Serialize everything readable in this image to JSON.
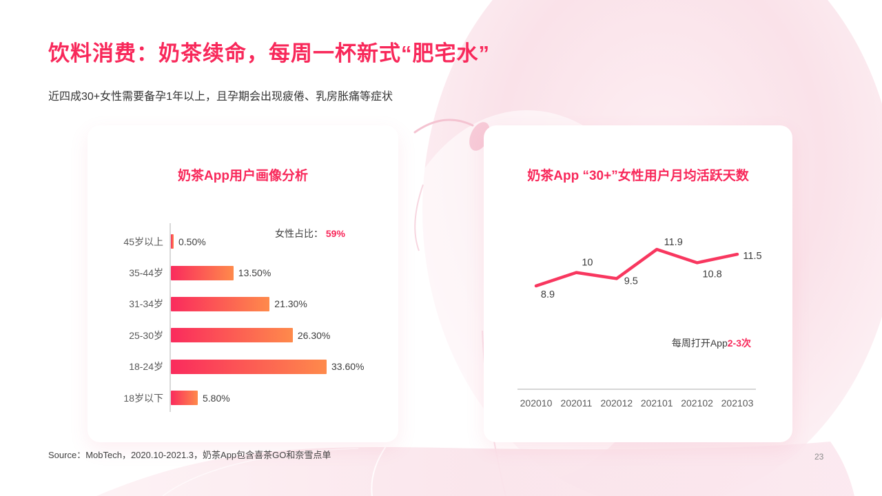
{
  "slide": {
    "title": "饮料消费：奶茶续命，每周一杯新式“肥宅水”",
    "subtitle": "近四成30+女性需要备孕1年以上，且孕期会出现疲倦、乳房胀痛等症状",
    "source": "Source：MobTech，2020.10-2021.3，奶茶App包含喜茶GO和奈雪点单",
    "page_number": "23"
  },
  "colors": {
    "accent": "#F8285A",
    "bar_gradient_start": "#FA2B5D",
    "bar_gradient_end": "#FE8A4B",
    "line": "#F8375F",
    "axis": "#C9C9C9",
    "tick_text": "#595959",
    "label_text": "#3d3d3d"
  },
  "chart_data": [
    {
      "type": "bar",
      "orientation": "horizontal",
      "title": "奶茶App用户画像分析",
      "categories": [
        "45岁以上",
        "35-44岁",
        "31-34岁",
        "25-30岁",
        "18-24岁",
        "18岁以下"
      ],
      "values": [
        0.5,
        13.5,
        21.3,
        26.3,
        33.6,
        5.8
      ],
      "value_labels": [
        "0.50%",
        "13.50%",
        "21.30%",
        "26.30%",
        "33.60%",
        "5.80%"
      ],
      "xlim": [
        0,
        34
      ],
      "grid": false,
      "annotation": {
        "label": "女性占比：",
        "value": "59%"
      }
    },
    {
      "type": "line",
      "title": "奶茶App “30+”女性用户月均活跃天数",
      "categories": [
        "202010",
        "202011",
        "202012",
        "202101",
        "202102",
        "202103"
      ],
      "values": [
        8.9,
        10,
        9.5,
        11.9,
        10.8,
        11.5
      ],
      "value_labels": [
        "8.9",
        "10",
        "9.5",
        "11.9",
        "10.8",
        "11.5"
      ],
      "ylim": [
        8,
        13
      ],
      "grid": false,
      "annotation": {
        "label": "每周打开App",
        "value": "2-3次"
      }
    }
  ]
}
